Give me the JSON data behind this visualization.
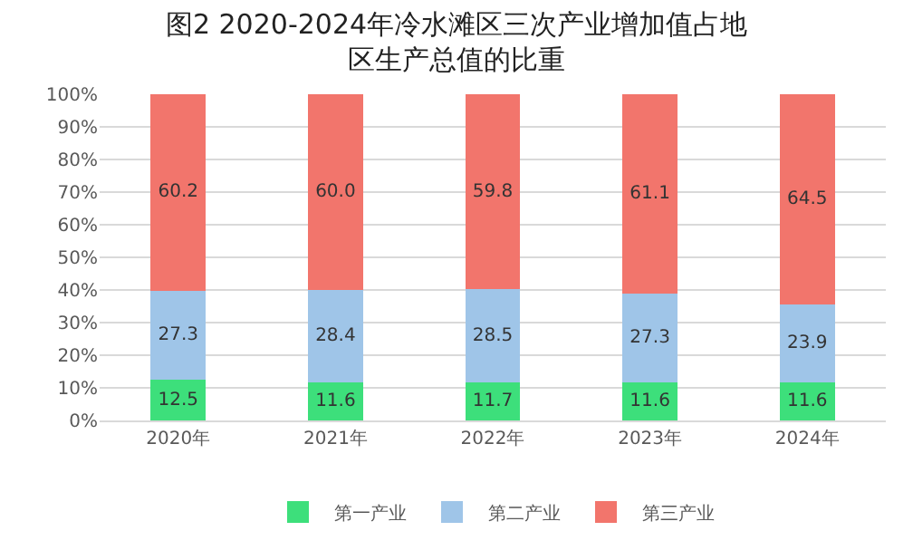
{
  "chart_data": {
    "type": "bar",
    "title": "图2 2020-2024年冷水滩区三次产业增加值占地区生产总值的比重",
    "categories": [
      "2020年",
      "2021年",
      "2022年",
      "2023年",
      "2024年"
    ],
    "series": [
      {
        "name": "第一产业",
        "color": "#3ddf7b",
        "values": [
          12.5,
          11.6,
          11.7,
          11.6,
          11.6
        ],
        "value_labels": [
          "12.5",
          "11.6",
          "11.7",
          "11.6",
          "11.6"
        ]
      },
      {
        "name": "第二产业",
        "color": "#9fc5e8",
        "values": [
          27.3,
          28.4,
          28.5,
          27.3,
          23.9
        ],
        "value_labels": [
          "27.3",
          "28.4",
          "28.5",
          "27.3",
          "23.9"
        ]
      },
      {
        "name": "第三产业",
        "color": "#f2756c",
        "values": [
          60.2,
          60.0,
          59.8,
          61.1,
          64.5
        ],
        "value_labels": [
          "60.2",
          "60.0",
          "59.8",
          "61.1",
          "64.5"
        ]
      }
    ],
    "stacked": true,
    "ylim": [
      0,
      100
    ],
    "yticks": [
      {
        "value": 0,
        "label": "0%"
      },
      {
        "value": 10,
        "label": "10%"
      },
      {
        "value": 20,
        "label": "20%"
      },
      {
        "value": 30,
        "label": "30%"
      },
      {
        "value": 40,
        "label": "40%"
      },
      {
        "value": 50,
        "label": "50%"
      },
      {
        "value": 60,
        "label": "60%"
      },
      {
        "value": 70,
        "label": "70%"
      },
      {
        "value": 80,
        "label": "80%"
      },
      {
        "value": 90,
        "label": "90%"
      },
      {
        "value": 100,
        "label": "100%"
      }
    ],
    "grid": "y",
    "legend": "bottom"
  }
}
